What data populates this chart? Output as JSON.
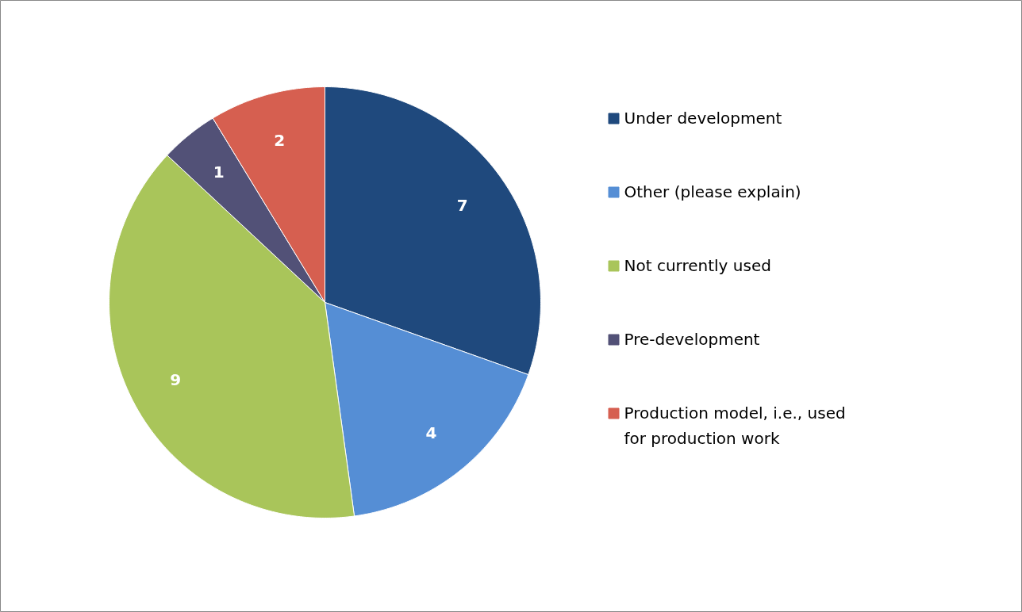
{
  "chart_data": {
    "type": "pie",
    "categories": [
      "Under development",
      "Other (please explain)",
      "Not currently used",
      "Pre-development",
      "Production model, i.e., used for production work"
    ],
    "values": [
      7,
      4,
      9,
      1,
      2
    ],
    "colors": [
      "#1f497d",
      "#558ed5",
      "#a9c55a",
      "#525177",
      "#d65f50"
    ],
    "data_labels": true,
    "legend": "right"
  }
}
